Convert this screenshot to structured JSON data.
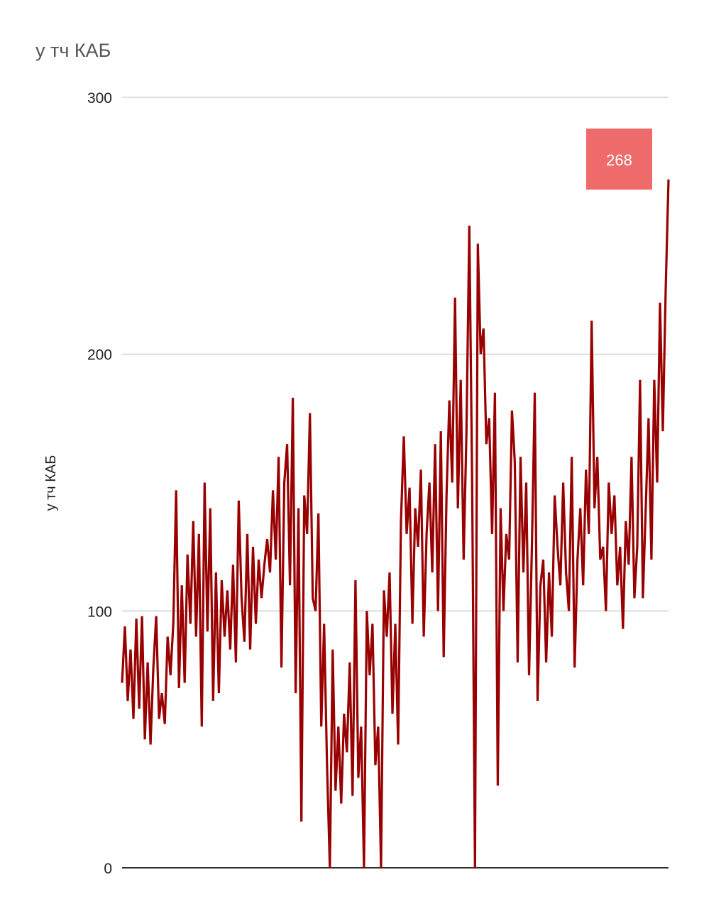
{
  "chart_data": {
    "type": "line",
    "title": "у тч КАБ",
    "ylabel": "у тч КАБ",
    "xlabel": "",
    "ylim": [
      0,
      300
    ],
    "yticks": [
      0,
      100,
      200,
      300
    ],
    "grid": true,
    "legend": "none",
    "line_color": "#990000",
    "annotation": {
      "label": "268",
      "value": 268,
      "color": "#ef6b6b"
    },
    "values": [
      72,
      94,
      65,
      85,
      58,
      97,
      62,
      98,
      50,
      80,
      48,
      78,
      98,
      58,
      68,
      56,
      90,
      75,
      95,
      147,
      70,
      110,
      72,
      122,
      95,
      135,
      90,
      130,
      55,
      150,
      92,
      140,
      65,
      115,
      68,
      112,
      90,
      108,
      85,
      118,
      80,
      143,
      105,
      88,
      130,
      85,
      125,
      95,
      120,
      105,
      118,
      128,
      115,
      147,
      120,
      160,
      78,
      150,
      165,
      110,
      183,
      68,
      140,
      18,
      145,
      130,
      177,
      105,
      100,
      138,
      55,
      95,
      40,
      0,
      85,
      30,
      55,
      25,
      60,
      45,
      80,
      28,
      112,
      35,
      55,
      0,
      100,
      75,
      95,
      40,
      55,
      0,
      108,
      90,
      115,
      60,
      95,
      48,
      135,
      168,
      130,
      148,
      95,
      140,
      125,
      155,
      90,
      130,
      150,
      115,
      165,
      100,
      170,
      82,
      145,
      182,
      150,
      222,
      140,
      190,
      120,
      170,
      250,
      150,
      0,
      243,
      200,
      210,
      165,
      175,
      130,
      185,
      32,
      140,
      100,
      130,
      120,
      178,
      158,
      80,
      160,
      115,
      150,
      75,
      125,
      185,
      65,
      110,
      120,
      80,
      115,
      90,
      145,
      125,
      110,
      150,
      115,
      100,
      160,
      78,
      120,
      140,
      110,
      155,
      130,
      213,
      140,
      160,
      120,
      125,
      100,
      150,
      130,
      145,
      110,
      125,
      93,
      135,
      118,
      160,
      105,
      125,
      190,
      105,
      140,
      175,
      120,
      190,
      150,
      220,
      170,
      225,
      268
    ]
  }
}
